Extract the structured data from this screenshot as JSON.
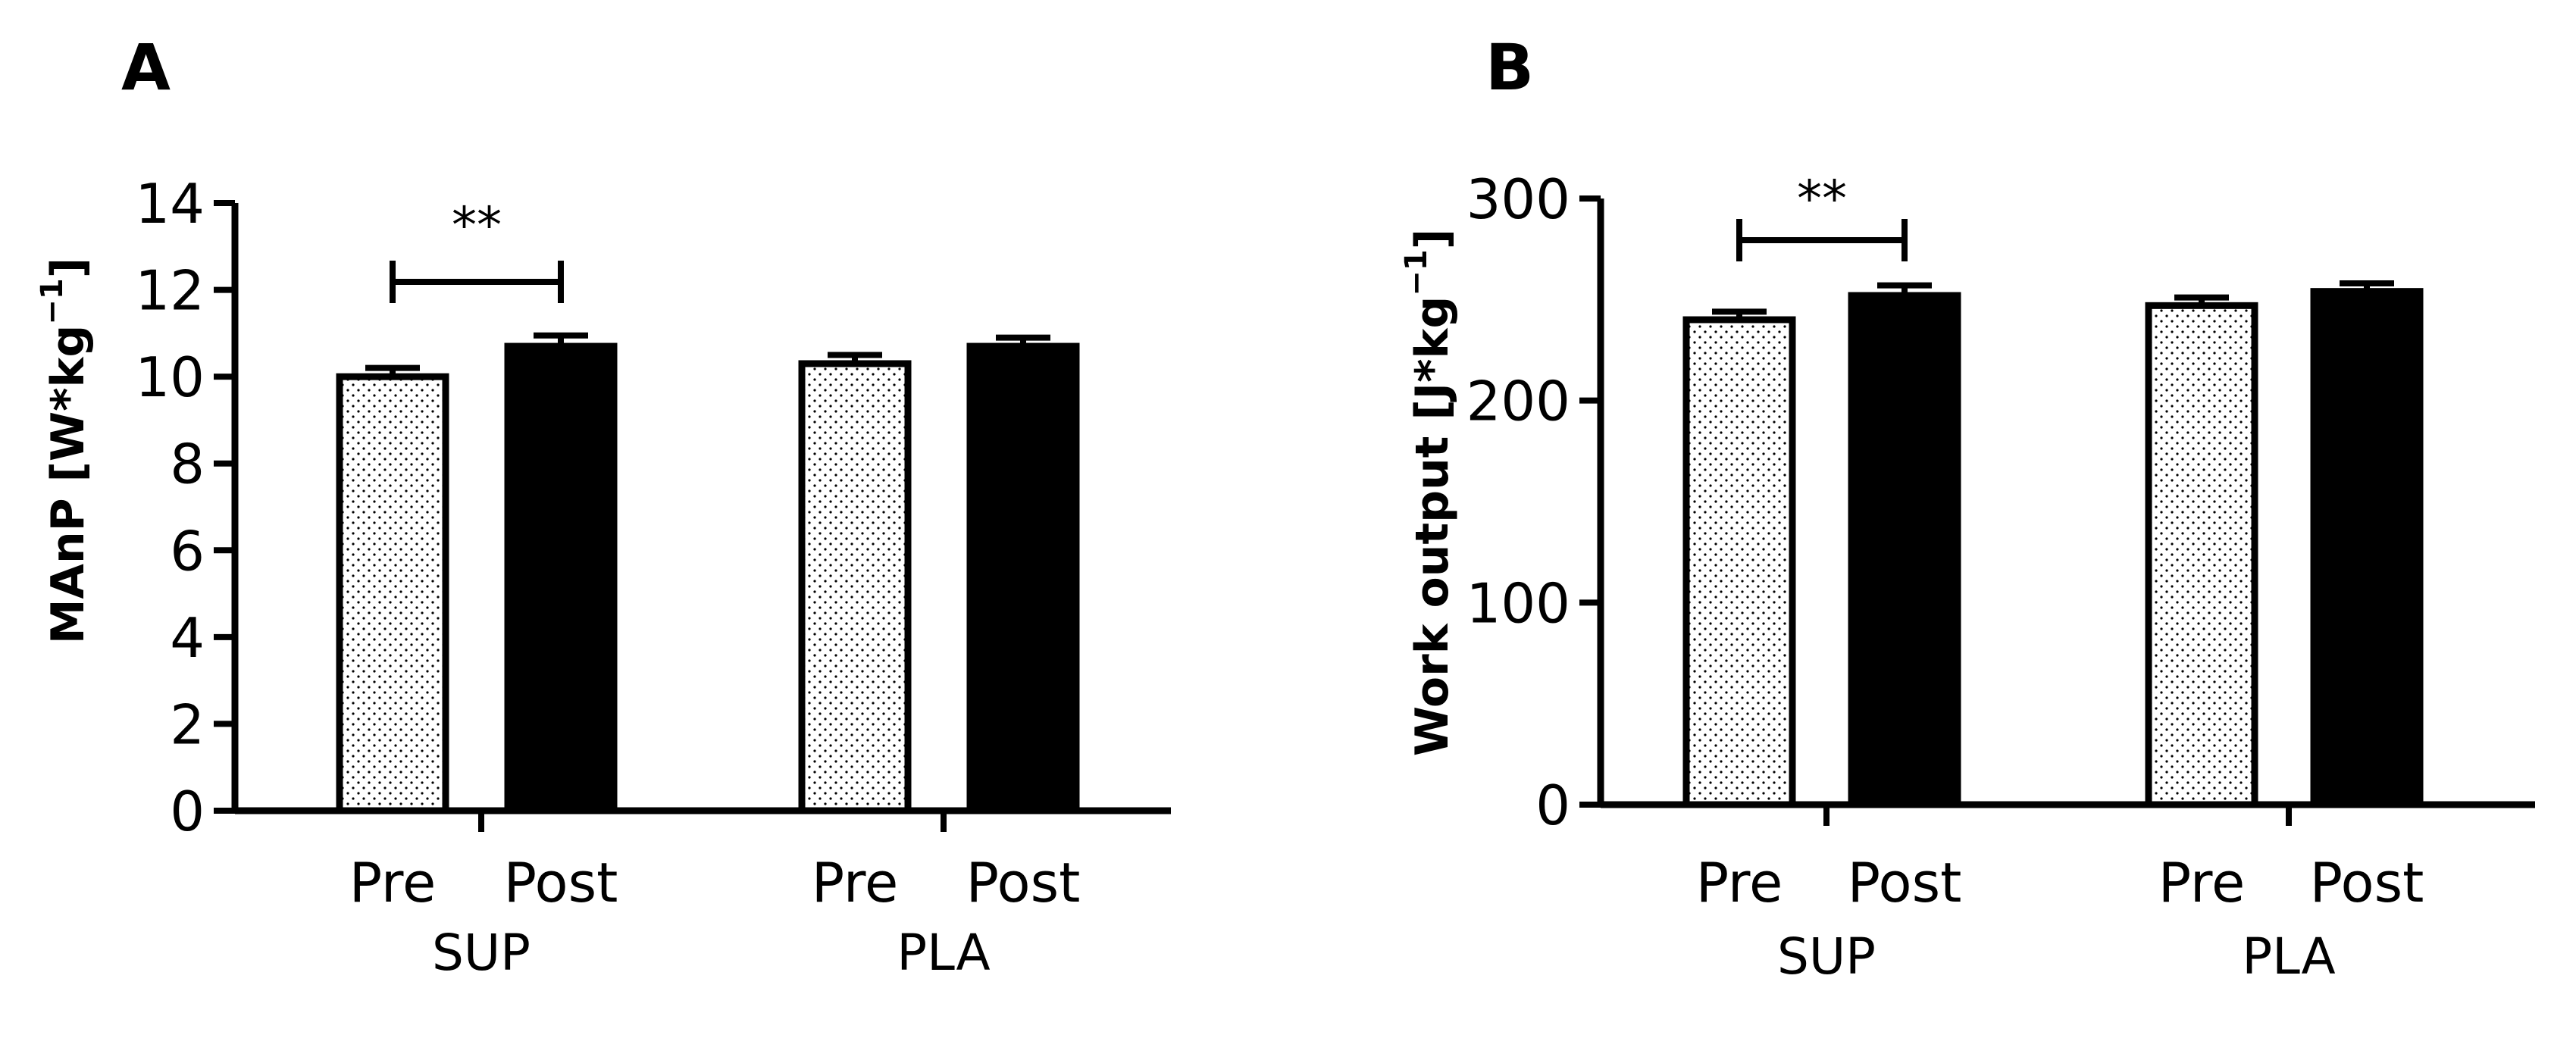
{
  "chart_data": [
    {
      "type": "bar",
      "panel_letter": "A",
      "ylabel": "MAnP [W*kg",
      "ylabel_sup": "−1",
      "ylabel_close": "]",
      "ylim": [
        0,
        14
      ],
      "yticks": [
        0,
        2,
        4,
        6,
        8,
        10,
        12,
        14
      ],
      "groups": [
        "SUP",
        "PLA"
      ],
      "categories": [
        "Pre",
        "Post"
      ],
      "series": [
        {
          "name": "Pre",
          "fill": "dotted",
          "values": [
            10.0,
            10.3
          ],
          "errors": [
            0.2,
            0.2
          ]
        },
        {
          "name": "Post",
          "fill": "#000000",
          "values": [
            10.7,
            10.7
          ],
          "errors": [
            0.25,
            0.2
          ]
        }
      ],
      "significance": {
        "group": "SUP",
        "label": "**"
      }
    },
    {
      "type": "bar",
      "panel_letter": "B",
      "ylabel": "Work output [J*kg",
      "ylabel_sup": "−1",
      "ylabel_close": "]",
      "ylim": [
        0,
        300
      ],
      "yticks": [
        0,
        100,
        200,
        300
      ],
      "groups": [
        "SUP",
        "PLA"
      ],
      "categories": [
        "Pre",
        "Post"
      ],
      "series": [
        {
          "name": "Pre",
          "fill": "dotted",
          "values": [
            240,
            247
          ],
          "errors": [
            4,
            4
          ]
        },
        {
          "name": "Post",
          "fill": "#000000",
          "values": [
            252,
            254
          ],
          "errors": [
            5,
            4
          ]
        }
      ],
      "significance": {
        "group": "SUP",
        "label": "**"
      }
    }
  ]
}
